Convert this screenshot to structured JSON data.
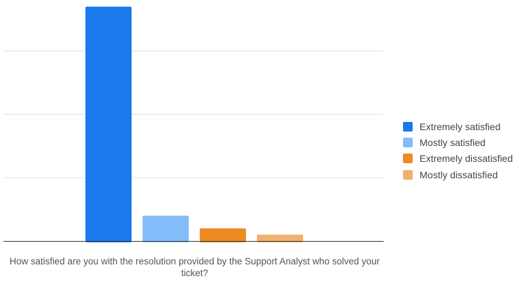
{
  "chart_data": {
    "type": "bar",
    "title": "",
    "xlabel": "How satisfied are you with the resolution provided by the Support Analyst who solved your ticket?",
    "ylabel": "",
    "categories": [
      "Extremely satisfied",
      "Mostly satisfied",
      "Extremely dissatisfied",
      "Mostly dissatisfied"
    ],
    "values": [
      37,
      4,
      2,
      1
    ],
    "colors": [
      "#1a7aec",
      "#85bcfa",
      "#ee8a22",
      "#f2b072"
    ],
    "ylim": [
      0,
      40
    ],
    "y_gridlines": [
      10,
      20,
      30
    ],
    "show_y_tick_labels": false,
    "grid": true,
    "legend": {
      "placement": "right",
      "entries": [
        {
          "label": "Extremely satisfied",
          "color": "#1a7aec"
        },
        {
          "label": "Mostly satisfied",
          "color": "#85bcfa"
        },
        {
          "label": "Extremely dissatisfied",
          "color": "#ee8a22"
        },
        {
          "label": "Mostly dissatisfied",
          "color": "#f2b072"
        }
      ]
    }
  }
}
